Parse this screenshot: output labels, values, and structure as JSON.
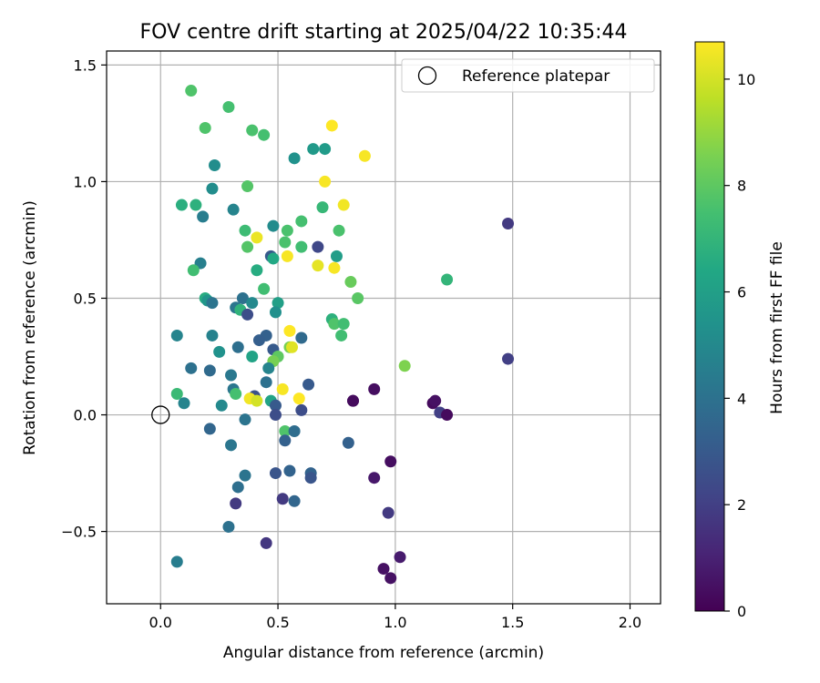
{
  "chart_data": {
    "type": "scatter",
    "title": "FOV centre drift starting at 2025/04/22 10:35:44",
    "xlabel": "Angular distance from reference (arcmin)",
    "ylabel": "Rotation from reference (arcmin)",
    "xlim": [
      -0.23,
      2.13
    ],
    "ylim": [
      -0.81,
      1.56
    ],
    "x_ticks": [
      0.0,
      0.5,
      1.0,
      1.5,
      2.0
    ],
    "x_tick_labels": [
      "0.0",
      "0.5",
      "1.0",
      "1.5",
      "2.0"
    ],
    "y_ticks": [
      -0.5,
      0.0,
      0.5,
      1.0,
      1.5
    ],
    "y_tick_labels": [
      "−0.5",
      "0.0",
      "0.5",
      "1.0",
      "1.5"
    ],
    "grid": true,
    "colormap": "viridis",
    "colorbar": {
      "label": "Hours from first FF file",
      "range": [
        0,
        10.7
      ],
      "ticks": [
        0,
        2,
        4,
        6,
        8,
        10
      ],
      "tick_labels": [
        "0",
        "2",
        "4",
        "6",
        "8",
        "10"
      ]
    },
    "legend": {
      "placement": "top-right",
      "entries": [
        {
          "label": "Reference platepar",
          "marker": "hollow-circle",
          "x": 0.0,
          "y": 0.0
        }
      ]
    },
    "points": [
      {
        "x": 0.13,
        "y": 1.39,
        "h": 7.7
      },
      {
        "x": 0.29,
        "y": 1.32,
        "h": 7.5
      },
      {
        "x": 0.19,
        "y": 1.23,
        "h": 7.7
      },
      {
        "x": 0.39,
        "y": 1.22,
        "h": 7.6
      },
      {
        "x": 0.44,
        "y": 1.2,
        "h": 7.5
      },
      {
        "x": 0.73,
        "y": 1.24,
        "h": 10.7
      },
      {
        "x": 0.65,
        "y": 1.14,
        "h": 5.7
      },
      {
        "x": 0.7,
        "y": 1.14,
        "h": 5.8
      },
      {
        "x": 0.57,
        "y": 1.1,
        "h": 5.4
      },
      {
        "x": 0.87,
        "y": 1.11,
        "h": 10.6
      },
      {
        "x": 0.23,
        "y": 1.07,
        "h": 5.2
      },
      {
        "x": 0.7,
        "y": 1.0,
        "h": 10.6
      },
      {
        "x": 0.37,
        "y": 0.98,
        "h": 7.8
      },
      {
        "x": 0.22,
        "y": 0.97,
        "h": 5.2
      },
      {
        "x": 0.09,
        "y": 0.9,
        "h": 6.7
      },
      {
        "x": 0.15,
        "y": 0.9,
        "h": 6.8
      },
      {
        "x": 0.69,
        "y": 0.89,
        "h": 7.1
      },
      {
        "x": 0.78,
        "y": 0.9,
        "h": 10.5
      },
      {
        "x": 0.31,
        "y": 0.88,
        "h": 4.8
      },
      {
        "x": 0.18,
        "y": 0.85,
        "h": 4.5
      },
      {
        "x": 0.6,
        "y": 0.83,
        "h": 7.5
      },
      {
        "x": 0.48,
        "y": 0.81,
        "h": 5.1
      },
      {
        "x": 0.36,
        "y": 0.79,
        "h": 7.3
      },
      {
        "x": 0.54,
        "y": 0.79,
        "h": 7.6
      },
      {
        "x": 0.76,
        "y": 0.79,
        "h": 7.6
      },
      {
        "x": 1.48,
        "y": 0.82,
        "h": 1.8
      },
      {
        "x": 0.41,
        "y": 0.76,
        "h": 10.4
      },
      {
        "x": 0.53,
        "y": 0.74,
        "h": 7.6
      },
      {
        "x": 0.37,
        "y": 0.72,
        "h": 7.8
      },
      {
        "x": 0.6,
        "y": 0.72,
        "h": 7.4
      },
      {
        "x": 0.67,
        "y": 0.72,
        "h": 2.3
      },
      {
        "x": 0.47,
        "y": 0.68,
        "h": 3.0
      },
      {
        "x": 0.48,
        "y": 0.67,
        "h": 6.4
      },
      {
        "x": 0.54,
        "y": 0.68,
        "h": 10.6
      },
      {
        "x": 0.75,
        "y": 0.68,
        "h": 5.9
      },
      {
        "x": 0.17,
        "y": 0.65,
        "h": 4.6
      },
      {
        "x": 0.14,
        "y": 0.62,
        "h": 7.4
      },
      {
        "x": 0.41,
        "y": 0.62,
        "h": 6.6
      },
      {
        "x": 0.67,
        "y": 0.64,
        "h": 10.3
      },
      {
        "x": 0.74,
        "y": 0.63,
        "h": 10.6
      },
      {
        "x": 0.81,
        "y": 0.57,
        "h": 8.2
      },
      {
        "x": 1.22,
        "y": 0.58,
        "h": 7.0
      },
      {
        "x": 0.44,
        "y": 0.54,
        "h": 7.4
      },
      {
        "x": 0.84,
        "y": 0.5,
        "h": 7.9
      },
      {
        "x": 0.19,
        "y": 0.5,
        "h": 6.6
      },
      {
        "x": 0.2,
        "y": 0.49,
        "h": 5.6
      },
      {
        "x": 0.22,
        "y": 0.48,
        "h": 4.1
      },
      {
        "x": 0.35,
        "y": 0.5,
        "h": 4.0
      },
      {
        "x": 0.39,
        "y": 0.48,
        "h": 5.0
      },
      {
        "x": 0.5,
        "y": 0.48,
        "h": 6.0
      },
      {
        "x": 0.32,
        "y": 0.46,
        "h": 4.2
      },
      {
        "x": 0.34,
        "y": 0.45,
        "h": 6.9
      },
      {
        "x": 0.37,
        "y": 0.43,
        "h": 2.5
      },
      {
        "x": 0.49,
        "y": 0.44,
        "h": 5.3
      },
      {
        "x": 0.73,
        "y": 0.41,
        "h": 6.8
      },
      {
        "x": 0.74,
        "y": 0.39,
        "h": 7.7
      },
      {
        "x": 0.78,
        "y": 0.39,
        "h": 7.4
      },
      {
        "x": 0.55,
        "y": 0.36,
        "h": 10.7
      },
      {
        "x": 0.07,
        "y": 0.34,
        "h": 4.8
      },
      {
        "x": 0.22,
        "y": 0.34,
        "h": 4.7
      },
      {
        "x": 0.45,
        "y": 0.34,
        "h": 3.3
      },
      {
        "x": 0.6,
        "y": 0.33,
        "h": 3.7
      },
      {
        "x": 0.77,
        "y": 0.34,
        "h": 7.4
      },
      {
        "x": 0.42,
        "y": 0.32,
        "h": 3.2
      },
      {
        "x": 0.33,
        "y": 0.29,
        "h": 3.9
      },
      {
        "x": 0.48,
        "y": 0.28,
        "h": 3.0
      },
      {
        "x": 0.55,
        "y": 0.29,
        "h": 8.5
      },
      {
        "x": 0.56,
        "y": 0.29,
        "h": 10.2
      },
      {
        "x": 0.25,
        "y": 0.27,
        "h": 5.4
      },
      {
        "x": 0.39,
        "y": 0.25,
        "h": 6.2
      },
      {
        "x": 0.5,
        "y": 0.25,
        "h": 8.0
      },
      {
        "x": 0.48,
        "y": 0.23,
        "h": 8.5
      },
      {
        "x": 1.04,
        "y": 0.21,
        "h": 8.6
      },
      {
        "x": 1.48,
        "y": 0.24,
        "h": 2.0
      },
      {
        "x": 0.13,
        "y": 0.2,
        "h": 4.0
      },
      {
        "x": 0.21,
        "y": 0.19,
        "h": 3.7
      },
      {
        "x": 0.46,
        "y": 0.2,
        "h": 4.8
      },
      {
        "x": 0.3,
        "y": 0.17,
        "h": 4.3
      },
      {
        "x": 0.45,
        "y": 0.14,
        "h": 4.0
      },
      {
        "x": 0.63,
        "y": 0.13,
        "h": 3.0
      },
      {
        "x": 0.31,
        "y": 0.11,
        "h": 4.2
      },
      {
        "x": 0.52,
        "y": 0.11,
        "h": 10.6
      },
      {
        "x": 0.07,
        "y": 0.09,
        "h": 7.2
      },
      {
        "x": 0.32,
        "y": 0.09,
        "h": 7.5
      },
      {
        "x": 0.4,
        "y": 0.08,
        "h": 2.7
      },
      {
        "x": 0.38,
        "y": 0.07,
        "h": 10.5
      },
      {
        "x": 0.41,
        "y": 0.06,
        "h": 10.0
      },
      {
        "x": 0.47,
        "y": 0.06,
        "h": 6.2
      },
      {
        "x": 0.59,
        "y": 0.07,
        "h": 10.7
      },
      {
        "x": 0.1,
        "y": 0.05,
        "h": 4.8
      },
      {
        "x": 0.26,
        "y": 0.04,
        "h": 5.0
      },
      {
        "x": 0.49,
        "y": 0.04,
        "h": 3.0
      },
      {
        "x": 0.82,
        "y": 0.06,
        "h": 0.5
      },
      {
        "x": 0.82,
        "y": 0.06,
        "h": 0.3
      },
      {
        "x": 0.91,
        "y": 0.11,
        "h": 0.4
      },
      {
        "x": 1.16,
        "y": 0.05,
        "h": 0.3
      },
      {
        "x": 1.17,
        "y": 0.06,
        "h": 0.5
      },
      {
        "x": 0.6,
        "y": 0.02,
        "h": 2.5
      },
      {
        "x": 1.19,
        "y": 0.01,
        "h": 2.0
      },
      {
        "x": 1.22,
        "y": 0.0,
        "h": 0.3
      },
      {
        "x": 0.49,
        "y": 0.0,
        "h": 2.5
      },
      {
        "x": 0.36,
        "y": -0.02,
        "h": 4.1
      },
      {
        "x": 0.21,
        "y": -0.06,
        "h": 3.5
      },
      {
        "x": 0.53,
        "y": -0.07,
        "h": 7.7
      },
      {
        "x": 0.57,
        "y": -0.07,
        "h": 3.8
      },
      {
        "x": 0.53,
        "y": -0.11,
        "h": 3.3
      },
      {
        "x": 0.8,
        "y": -0.12,
        "h": 3.3
      },
      {
        "x": 0.3,
        "y": -0.13,
        "h": 4.2
      },
      {
        "x": 0.98,
        "y": -0.2,
        "h": 0.4
      },
      {
        "x": 0.49,
        "y": -0.25,
        "h": 2.8
      },
      {
        "x": 0.55,
        "y": -0.24,
        "h": 3.4
      },
      {
        "x": 0.36,
        "y": -0.26,
        "h": 4.1
      },
      {
        "x": 0.64,
        "y": -0.25,
        "h": 3.4
      },
      {
        "x": 0.64,
        "y": -0.27,
        "h": 2.8
      },
      {
        "x": 0.91,
        "y": -0.27,
        "h": 0.7
      },
      {
        "x": 0.33,
        "y": -0.31,
        "h": 3.9
      },
      {
        "x": 0.52,
        "y": -0.36,
        "h": 1.8
      },
      {
        "x": 0.57,
        "y": -0.37,
        "h": 3.5
      },
      {
        "x": 0.32,
        "y": -0.38,
        "h": 1.8
      },
      {
        "x": 0.97,
        "y": -0.42,
        "h": 1.8
      },
      {
        "x": 0.29,
        "y": -0.48,
        "h": 4.0
      },
      {
        "x": 0.45,
        "y": -0.55,
        "h": 1.7
      },
      {
        "x": 1.02,
        "y": -0.61,
        "h": 0.8
      },
      {
        "x": 0.07,
        "y": -0.63,
        "h": 4.5
      },
      {
        "x": 0.95,
        "y": -0.66,
        "h": 0.5
      },
      {
        "x": 0.98,
        "y": -0.7,
        "h": 0.5
      }
    ]
  }
}
